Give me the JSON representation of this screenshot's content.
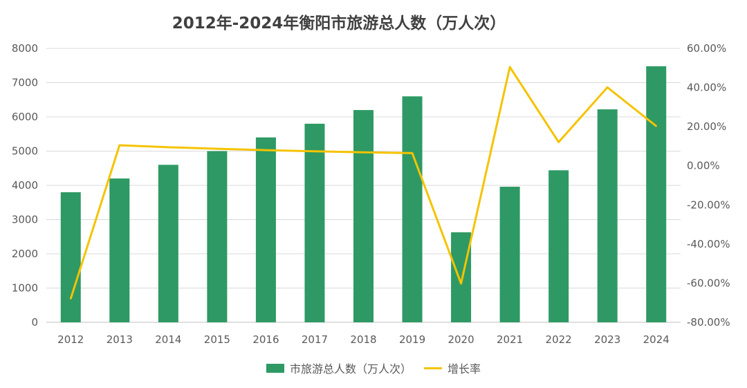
{
  "chart_data": {
    "type": "bar+line",
    "title": "2012年-2024年衡阳市旅游总人数（万人次）",
    "categories": [
      "2012",
      "2013",
      "2014",
      "2015",
      "2016",
      "2017",
      "2018",
      "2019",
      "2020",
      "2021",
      "2022",
      "2023",
      "2024"
    ],
    "series": [
      {
        "name": "市旅游总人数（万人次）",
        "type": "bar",
        "axis": "left",
        "color": "#2e9964",
        "values": [
          3800,
          4200,
          4600,
          5000,
          5400,
          5800,
          6200,
          6600,
          2630,
          3960,
          4440,
          6220,
          7480
        ]
      },
      {
        "name": "增长率",
        "type": "line",
        "axis": "right",
        "color": "#f5c300",
        "values": [
          -67.9,
          10.5,
          9.5,
          8.7,
          8.0,
          7.4,
          6.9,
          6.5,
          -60.2,
          50.5,
          12.1,
          40.1,
          20.3
        ]
      }
    ],
    "y_left": {
      "min": 0,
      "max": 8000,
      "step": 1000,
      "ticks": [
        "0",
        "1000",
        "2000",
        "3000",
        "4000",
        "5000",
        "6000",
        "7000",
        "8000"
      ]
    },
    "y_right": {
      "min": -80,
      "max": 60,
      "step": 20,
      "ticks": [
        "-80.00%",
        "-60.00%",
        "-40.00%",
        "-20.00%",
        "0.00%",
        "20.00%",
        "40.00%",
        "60.00%"
      ]
    },
    "grid": true,
    "legend_position": "bottom"
  }
}
